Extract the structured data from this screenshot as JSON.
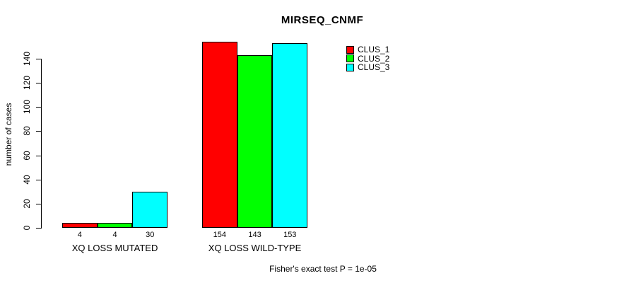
{
  "chart_data": {
    "type": "bar",
    "title": "MIRSEQ_CNMF",
    "ylabel": "number of cases",
    "xlabel": "",
    "ylim": [
      0,
      140
    ],
    "yticks": [
      0,
      20,
      40,
      60,
      80,
      100,
      120,
      140
    ],
    "grid": false,
    "legend_position": "top-right",
    "categories": [
      "XQ LOSS MUTATED",
      "XQ LOSS WILD-TYPE"
    ],
    "series": [
      {
        "name": "CLUS_1",
        "color": "#FF0000",
        "values": [
          4,
          154
        ]
      },
      {
        "name": "CLUS_2",
        "color": "#00FF00",
        "values": [
          4,
          143
        ]
      },
      {
        "name": "CLUS_3",
        "color": "#00FFFF",
        "values": [
          30,
          153
        ]
      }
    ],
    "groups": [
      {
        "label": "XQ LOSS MUTATED",
        "values": [
          4,
          4,
          30
        ],
        "value_labels": [
          "4",
          "4",
          "30"
        ]
      },
      {
        "label": "XQ LOSS WILD-TYPE",
        "values": [
          154,
          143,
          153
        ],
        "value_labels": [
          "154",
          "143",
          "153"
        ]
      }
    ],
    "annotation": "Fisher's exact test P = 1e-05"
  }
}
